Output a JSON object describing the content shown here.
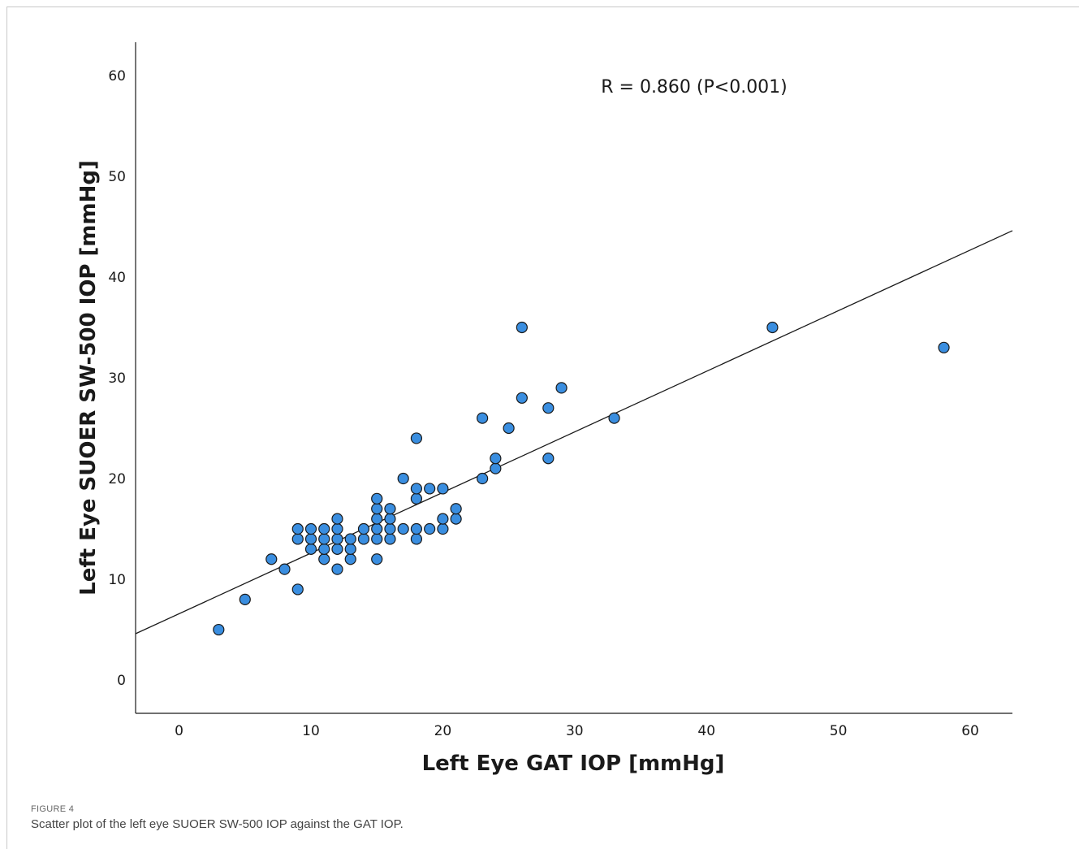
{
  "caption": {
    "label": "FIGURE 4",
    "text": "Scatter plot of the left eye SUOER SW-500 IOP against the GAT IOP."
  },
  "chart_data": {
    "type": "scatter",
    "title": "",
    "xlabel": "Left Eye GAT IOP [mmHg]",
    "ylabel": "Left Eye SUOER SW-500 IOP [mmHg]",
    "xlim": [
      -3.3,
      63.2
    ],
    "ylim": [
      -3.3,
      63.3
    ],
    "xticks": [
      0,
      10,
      20,
      30,
      40,
      50,
      60
    ],
    "yticks": [
      0,
      10,
      20,
      30,
      40,
      50,
      60
    ],
    "grid": false,
    "annotation": "R = 0.860 (P<0.001)",
    "marker_color": "#3a8ee0",
    "marker_edge_color": "#1a1a1a",
    "line_color": "#1a1a1a",
    "fit_line": {
      "x": [
        -3.3,
        63.2
      ],
      "y": [
        4.6,
        44.6
      ]
    },
    "points": [
      {
        "x": 3,
        "y": 5
      },
      {
        "x": 5,
        "y": 8
      },
      {
        "x": 7,
        "y": 12
      },
      {
        "x": 8,
        "y": 11
      },
      {
        "x": 9,
        "y": 9
      },
      {
        "x": 9,
        "y": 14
      },
      {
        "x": 9,
        "y": 15
      },
      {
        "x": 10,
        "y": 13
      },
      {
        "x": 10,
        "y": 14
      },
      {
        "x": 10,
        "y": 15
      },
      {
        "x": 11,
        "y": 12
      },
      {
        "x": 11,
        "y": 13
      },
      {
        "x": 11,
        "y": 14
      },
      {
        "x": 11,
        "y": 15
      },
      {
        "x": 12,
        "y": 11
      },
      {
        "x": 12,
        "y": 13
      },
      {
        "x": 12,
        "y": 14
      },
      {
        "x": 12,
        "y": 15
      },
      {
        "x": 12,
        "y": 16
      },
      {
        "x": 13,
        "y": 12
      },
      {
        "x": 13,
        "y": 13
      },
      {
        "x": 13,
        "y": 14
      },
      {
        "x": 14,
        "y": 14
      },
      {
        "x": 14,
        "y": 15
      },
      {
        "x": 15,
        "y": 12
      },
      {
        "x": 15,
        "y": 14
      },
      {
        "x": 15,
        "y": 15
      },
      {
        "x": 15,
        "y": 16
      },
      {
        "x": 15,
        "y": 17
      },
      {
        "x": 15,
        "y": 18
      },
      {
        "x": 16,
        "y": 14
      },
      {
        "x": 16,
        "y": 15
      },
      {
        "x": 16,
        "y": 16
      },
      {
        "x": 16,
        "y": 17
      },
      {
        "x": 17,
        "y": 15
      },
      {
        "x": 17,
        "y": 20
      },
      {
        "x": 18,
        "y": 14
      },
      {
        "x": 18,
        "y": 15
      },
      {
        "x": 18,
        "y": 18
      },
      {
        "x": 18,
        "y": 19
      },
      {
        "x": 18,
        "y": 24
      },
      {
        "x": 19,
        "y": 15
      },
      {
        "x": 19,
        "y": 19
      },
      {
        "x": 20,
        "y": 15
      },
      {
        "x": 20,
        "y": 16
      },
      {
        "x": 20,
        "y": 19
      },
      {
        "x": 21,
        "y": 16
      },
      {
        "x": 21,
        "y": 17
      },
      {
        "x": 23,
        "y": 20
      },
      {
        "x": 23,
        "y": 26
      },
      {
        "x": 24,
        "y": 21
      },
      {
        "x": 24,
        "y": 22
      },
      {
        "x": 25,
        "y": 25
      },
      {
        "x": 26,
        "y": 28
      },
      {
        "x": 26,
        "y": 35
      },
      {
        "x": 28,
        "y": 22
      },
      {
        "x": 28,
        "y": 27
      },
      {
        "x": 29,
        "y": 29
      },
      {
        "x": 33,
        "y": 26
      },
      {
        "x": 45,
        "y": 35
      },
      {
        "x": 58,
        "y": 33
      }
    ]
  }
}
